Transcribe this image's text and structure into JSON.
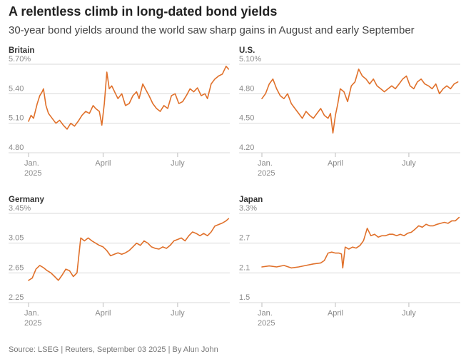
{
  "header": {
    "title": "A relentless climb in long-dated bond yields",
    "subtitle": "30-year bond yields around the world saw sharp gains in August and early September"
  },
  "footer": {
    "source": "Source: LSEG | Reuters, September 03 2025 | By Alun John"
  },
  "colors": {
    "line": "#e0702a",
    "grid": "#d9d9d9",
    "tick_text": "#8a8a8a"
  },
  "chart_data": [
    {
      "type": "line",
      "title": "Britain",
      "xlim": [
        0,
        8.1
      ],
      "ylim": [
        4.8,
        5.7
      ],
      "yticks": [
        4.8,
        5.1,
        5.4,
        5.7
      ],
      "ytick_labels": [
        "4.80",
        "5.10",
        "5.40",
        "5.70%"
      ],
      "xticks": [
        {
          "value": 0,
          "label": [
            "Jan.",
            "2025"
          ]
        },
        {
          "value": 3,
          "label": [
            "April"
          ]
        },
        {
          "value": 6,
          "label": [
            "July"
          ]
        }
      ],
      "series": [
        {
          "values": [
            [
              0.0,
              5.12
            ],
            [
              0.1,
              5.18
            ],
            [
              0.2,
              5.15
            ],
            [
              0.35,
              5.3
            ],
            [
              0.45,
              5.38
            ],
            [
              0.55,
              5.42
            ],
            [
              0.6,
              5.45
            ],
            [
              0.7,
              5.28
            ],
            [
              0.8,
              5.2
            ],
            [
              0.95,
              5.15
            ],
            [
              1.1,
              5.1
            ],
            [
              1.25,
              5.13
            ],
            [
              1.4,
              5.08
            ],
            [
              1.55,
              5.04
            ],
            [
              1.7,
              5.1
            ],
            [
              1.85,
              5.07
            ],
            [
              2.0,
              5.12
            ],
            [
              2.15,
              5.18
            ],
            [
              2.3,
              5.22
            ],
            [
              2.45,
              5.2
            ],
            [
              2.6,
              5.28
            ],
            [
              2.7,
              5.25
            ],
            [
              2.85,
              5.22
            ],
            [
              2.95,
              5.08
            ],
            [
              3.05,
              5.3
            ],
            [
              3.15,
              5.62
            ],
            [
              3.25,
              5.45
            ],
            [
              3.35,
              5.48
            ],
            [
              3.5,
              5.4
            ],
            [
              3.6,
              5.35
            ],
            [
              3.75,
              5.4
            ],
            [
              3.9,
              5.28
            ],
            [
              4.05,
              5.3
            ],
            [
              4.2,
              5.38
            ],
            [
              4.35,
              5.42
            ],
            [
              4.45,
              5.35
            ],
            [
              4.6,
              5.5
            ],
            [
              4.7,
              5.45
            ],
            [
              4.85,
              5.38
            ],
            [
              5.0,
              5.3
            ],
            [
              5.15,
              5.25
            ],
            [
              5.3,
              5.22
            ],
            [
              5.45,
              5.28
            ],
            [
              5.6,
              5.25
            ],
            [
              5.75,
              5.38
            ],
            [
              5.9,
              5.4
            ],
            [
              6.05,
              5.3
            ],
            [
              6.2,
              5.32
            ],
            [
              6.35,
              5.38
            ],
            [
              6.5,
              5.45
            ],
            [
              6.65,
              5.42
            ],
            [
              6.8,
              5.46
            ],
            [
              6.95,
              5.38
            ],
            [
              7.1,
              5.4
            ],
            [
              7.2,
              5.35
            ],
            [
              7.35,
              5.5
            ],
            [
              7.5,
              5.55
            ],
            [
              7.65,
              5.58
            ],
            [
              7.8,
              5.6
            ],
            [
              7.95,
              5.68
            ],
            [
              8.05,
              5.65
            ]
          ]
        }
      ]
    },
    {
      "type": "line",
      "title": "U.S.",
      "xlim": [
        0,
        8.1
      ],
      "ylim": [
        4.2,
        5.1
      ],
      "yticks": [
        4.2,
        4.5,
        4.8,
        5.1
      ],
      "ytick_labels": [
        "4.20",
        "4.50",
        "4.80",
        "5.10%"
      ],
      "xticks": [
        {
          "value": 0,
          "label": [
            "Jan.",
            "2025"
          ]
        },
        {
          "value": 3,
          "label": [
            "April"
          ]
        },
        {
          "value": 6,
          "label": [
            "July"
          ]
        }
      ],
      "series": [
        {
          "values": [
            [
              0.0,
              4.75
            ],
            [
              0.15,
              4.8
            ],
            [
              0.3,
              4.9
            ],
            [
              0.45,
              4.95
            ],
            [
              0.6,
              4.85
            ],
            [
              0.75,
              4.78
            ],
            [
              0.9,
              4.75
            ],
            [
              1.05,
              4.8
            ],
            [
              1.2,
              4.7
            ],
            [
              1.35,
              4.65
            ],
            [
              1.5,
              4.6
            ],
            [
              1.65,
              4.55
            ],
            [
              1.8,
              4.62
            ],
            [
              1.95,
              4.58
            ],
            [
              2.1,
              4.55
            ],
            [
              2.25,
              4.6
            ],
            [
              2.4,
              4.65
            ],
            [
              2.55,
              4.58
            ],
            [
              2.7,
              4.55
            ],
            [
              2.8,
              4.6
            ],
            [
              2.9,
              4.4
            ],
            [
              3.0,
              4.58
            ],
            [
              3.1,
              4.7
            ],
            [
              3.2,
              4.85
            ],
            [
              3.35,
              4.82
            ],
            [
              3.5,
              4.72
            ],
            [
              3.65,
              4.88
            ],
            [
              3.8,
              4.92
            ],
            [
              3.95,
              5.05
            ],
            [
              4.1,
              4.98
            ],
            [
              4.25,
              4.95
            ],
            [
              4.4,
              4.9
            ],
            [
              4.55,
              4.95
            ],
            [
              4.7,
              4.88
            ],
            [
              4.85,
              4.85
            ],
            [
              5.0,
              4.82
            ],
            [
              5.15,
              4.85
            ],
            [
              5.3,
              4.88
            ],
            [
              5.45,
              4.85
            ],
            [
              5.6,
              4.9
            ],
            [
              5.75,
              4.95
            ],
            [
              5.9,
              4.98
            ],
            [
              6.05,
              4.88
            ],
            [
              6.2,
              4.85
            ],
            [
              6.35,
              4.92
            ],
            [
              6.5,
              4.95
            ],
            [
              6.65,
              4.9
            ],
            [
              6.8,
              4.88
            ],
            [
              6.95,
              4.85
            ],
            [
              7.1,
              4.9
            ],
            [
              7.25,
              4.8
            ],
            [
              7.4,
              4.85
            ],
            [
              7.55,
              4.88
            ],
            [
              7.7,
              4.85
            ],
            [
              7.85,
              4.9
            ],
            [
              8.0,
              4.92
            ]
          ]
        }
      ]
    },
    {
      "type": "line",
      "title": "Germany",
      "xlim": [
        0,
        8.1
      ],
      "ylim": [
        2.25,
        3.45
      ],
      "yticks": [
        2.25,
        2.65,
        3.05,
        3.45
      ],
      "ytick_labels": [
        "2.25",
        "2.65",
        "3.05",
        "3.45%"
      ],
      "xticks": [
        {
          "value": 0,
          "label": [
            "Jan.",
            "2025"
          ]
        },
        {
          "value": 3,
          "label": [
            "April"
          ]
        },
        {
          "value": 6,
          "label": [
            "July"
          ]
        }
      ],
      "series": [
        {
          "values": [
            [
              0.0,
              2.55
            ],
            [
              0.15,
              2.58
            ],
            [
              0.3,
              2.7
            ],
            [
              0.45,
              2.75
            ],
            [
              0.6,
              2.72
            ],
            [
              0.75,
              2.68
            ],
            [
              0.9,
              2.65
            ],
            [
              1.05,
              2.6
            ],
            [
              1.2,
              2.55
            ],
            [
              1.35,
              2.62
            ],
            [
              1.5,
              2.7
            ],
            [
              1.65,
              2.68
            ],
            [
              1.8,
              2.6
            ],
            [
              1.95,
              2.65
            ],
            [
              2.1,
              3.12
            ],
            [
              2.25,
              3.08
            ],
            [
              2.4,
              3.12
            ],
            [
              2.55,
              3.08
            ],
            [
              2.7,
              3.05
            ],
            [
              2.85,
              3.02
            ],
            [
              3.0,
              3.0
            ],
            [
              3.15,
              2.95
            ],
            [
              3.3,
              2.88
            ],
            [
              3.45,
              2.9
            ],
            [
              3.6,
              2.92
            ],
            [
              3.75,
              2.9
            ],
            [
              3.9,
              2.92
            ],
            [
              4.05,
              2.95
            ],
            [
              4.2,
              3.0
            ],
            [
              4.35,
              3.05
            ],
            [
              4.5,
              3.02
            ],
            [
              4.65,
              3.08
            ],
            [
              4.8,
              3.05
            ],
            [
              4.95,
              3.0
            ],
            [
              5.1,
              2.98
            ],
            [
              5.25,
              2.97
            ],
            [
              5.4,
              3.0
            ],
            [
              5.55,
              2.98
            ],
            [
              5.7,
              3.02
            ],
            [
              5.85,
              3.08
            ],
            [
              6.0,
              3.1
            ],
            [
              6.15,
              3.12
            ],
            [
              6.3,
              3.08
            ],
            [
              6.45,
              3.15
            ],
            [
              6.6,
              3.2
            ],
            [
              6.75,
              3.18
            ],
            [
              6.9,
              3.15
            ],
            [
              7.05,
              3.18
            ],
            [
              7.2,
              3.15
            ],
            [
              7.35,
              3.2
            ],
            [
              7.5,
              3.28
            ],
            [
              7.65,
              3.3
            ],
            [
              7.8,
              3.32
            ],
            [
              7.95,
              3.35
            ],
            [
              8.05,
              3.38
            ]
          ]
        }
      ]
    },
    {
      "type": "line",
      "title": "Japan",
      "xlim": [
        0,
        8.1
      ],
      "ylim": [
        1.5,
        3.3
      ],
      "yticks": [
        1.5,
        2.1,
        2.7,
        3.3
      ],
      "ytick_labels": [
        "1.5",
        "2.1",
        "2.7",
        "3.3%"
      ],
      "xticks": [
        {
          "value": 0,
          "label": [
            "Jan.",
            "2025"
          ]
        },
        {
          "value": 3,
          "label": [
            "April"
          ]
        },
        {
          "value": 6,
          "label": [
            "July"
          ]
        }
      ],
      "series": [
        {
          "values": [
            [
              0.0,
              2.22
            ],
            [
              0.3,
              2.24
            ],
            [
              0.6,
              2.22
            ],
            [
              0.9,
              2.25
            ],
            [
              1.2,
              2.2
            ],
            [
              1.5,
              2.22
            ],
            [
              1.8,
              2.25
            ],
            [
              2.1,
              2.28
            ],
            [
              2.4,
              2.3
            ],
            [
              2.55,
              2.35
            ],
            [
              2.7,
              2.5
            ],
            [
              2.85,
              2.52
            ],
            [
              3.0,
              2.5
            ],
            [
              3.15,
              2.5
            ],
            [
              3.25,
              2.48
            ],
            [
              3.3,
              2.2
            ],
            [
              3.4,
              2.62
            ],
            [
              3.55,
              2.58
            ],
            [
              3.7,
              2.62
            ],
            [
              3.85,
              2.6
            ],
            [
              4.0,
              2.65
            ],
            [
              4.15,
              2.75
            ],
            [
              4.3,
              3.0
            ],
            [
              4.45,
              2.85
            ],
            [
              4.6,
              2.88
            ],
            [
              4.75,
              2.82
            ],
            [
              4.9,
              2.85
            ],
            [
              5.05,
              2.85
            ],
            [
              5.2,
              2.88
            ],
            [
              5.35,
              2.88
            ],
            [
              5.5,
              2.85
            ],
            [
              5.65,
              2.88
            ],
            [
              5.8,
              2.85
            ],
            [
              5.95,
              2.9
            ],
            [
              6.1,
              2.92
            ],
            [
              6.25,
              2.98
            ],
            [
              6.4,
              3.05
            ],
            [
              6.55,
              3.02
            ],
            [
              6.7,
              3.08
            ],
            [
              6.85,
              3.05
            ],
            [
              7.0,
              3.05
            ],
            [
              7.15,
              3.08
            ],
            [
              7.3,
              3.1
            ],
            [
              7.45,
              3.12
            ],
            [
              7.6,
              3.1
            ],
            [
              7.75,
              3.15
            ],
            [
              7.9,
              3.15
            ],
            [
              8.05,
              3.22
            ]
          ]
        }
      ]
    }
  ]
}
